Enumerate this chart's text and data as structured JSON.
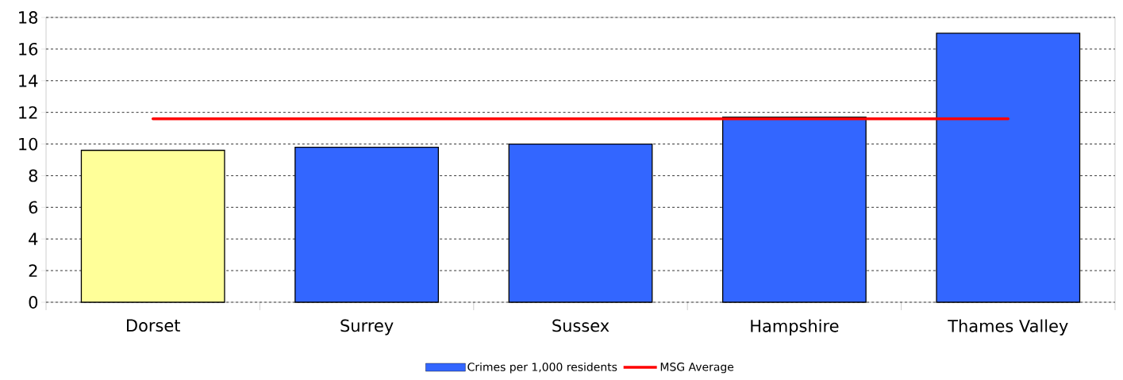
{
  "chart_data": {
    "type": "bar",
    "categories": [
      "Dorset",
      "Surrey",
      "Sussex",
      "Hampshire",
      "Thames Valley"
    ],
    "series": [
      {
        "name": "Crimes per 1,000 residents",
        "color": "#3366ff",
        "colors": [
          "#ffff99",
          "#3366ff",
          "#3366ff",
          "#3366ff",
          "#3366ff"
        ],
        "values": [
          9.6,
          9.8,
          10.0,
          11.7,
          17.0
        ]
      },
      {
        "name": "MSG Average",
        "type": "line",
        "color": "#ff0000",
        "values": [
          11.6,
          11.6,
          11.6,
          11.6,
          11.6
        ]
      }
    ],
    "ylim": [
      0,
      18
    ],
    "yticks": [
      0,
      2,
      4,
      6,
      8,
      10,
      12,
      14,
      16,
      18
    ],
    "grid": "y",
    "legend": "bottom"
  }
}
